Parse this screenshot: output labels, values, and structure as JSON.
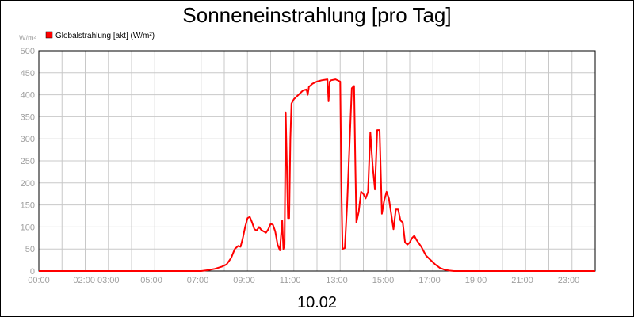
{
  "chart_data": {
    "type": "line",
    "title": "Sonneneinstrahlung [pro Tag]",
    "subtitle": "10.02",
    "ylabel": "W/m²",
    "xlabel": "",
    "ylim": [
      0,
      500
    ],
    "xlim": [
      0,
      24
    ],
    "grid": true,
    "legend_position": "top-left",
    "y_ticks": [
      0,
      50,
      100,
      150,
      200,
      250,
      300,
      350,
      400,
      450,
      500
    ],
    "x_ticks": [
      {
        "x": 0,
        "label": "00:00"
      },
      {
        "x": 2.1,
        "label": "02:00 03:00"
      },
      {
        "x": 5,
        "label": "05:00"
      },
      {
        "x": 7,
        "label": "07:00"
      },
      {
        "x": 9,
        "label": "09:00"
      },
      {
        "x": 11,
        "label": "11:00"
      },
      {
        "x": 13,
        "label": "13:00"
      },
      {
        "x": 15,
        "label": "15:00"
      },
      {
        "x": 17,
        "label": "17:00"
      },
      {
        "x": 19,
        "label": "19:00"
      },
      {
        "x": 21,
        "label": "21:00"
      },
      {
        "x": 23,
        "label": "23:00"
      }
    ],
    "x_minor_grid": [
      0,
      1,
      2,
      3,
      4,
      5,
      6,
      7,
      8,
      9,
      10,
      11,
      12,
      13,
      14,
      15,
      16,
      17,
      18,
      19,
      20,
      21,
      22,
      23,
      24
    ],
    "series": [
      {
        "name": "Globalstrahlung [akt] (W/m²)",
        "color": "#ff0000",
        "x": [
          0,
          7.0,
          7.3,
          7.6,
          7.9,
          8.1,
          8.3,
          8.45,
          8.6,
          8.7,
          8.8,
          8.9,
          9.0,
          9.1,
          9.2,
          9.3,
          9.4,
          9.5,
          9.6,
          9.7,
          9.8,
          9.9,
          10.0,
          10.1,
          10.2,
          10.3,
          10.4,
          10.5,
          10.55,
          10.6,
          10.65,
          10.75,
          10.8,
          10.85,
          10.9,
          11.0,
          11.2,
          11.4,
          11.55,
          11.6,
          11.65,
          11.8,
          12.0,
          12.2,
          12.45,
          12.5,
          12.55,
          12.6,
          12.8,
          13.0,
          13.05,
          13.1,
          13.2,
          13.3,
          13.5,
          13.6,
          13.65,
          13.7,
          13.8,
          13.9,
          14.0,
          14.1,
          14.2,
          14.3,
          14.4,
          14.5,
          14.6,
          14.7,
          14.8,
          14.9,
          15.0,
          15.1,
          15.2,
          15.3,
          15.4,
          15.5,
          15.6,
          15.7,
          15.8,
          15.9,
          16.0,
          16.1,
          16.2,
          16.3,
          16.5,
          16.7,
          16.9,
          17.1,
          17.3,
          17.5,
          17.7,
          17.9,
          18.2,
          18.6,
          24
        ],
        "values": [
          0,
          0,
          2,
          5,
          10,
          15,
          30,
          50,
          57,
          55,
          75,
          100,
          120,
          123,
          110,
          95,
          92,
          100,
          93,
          90,
          87,
          95,
          107,
          105,
          90,
          60,
          47,
          115,
          50,
          60,
          360,
          120,
          120,
          300,
          380,
          390,
          400,
          410,
          412,
          400,
          418,
          425,
          430,
          433,
          435,
          385,
          430,
          433,
          435,
          430,
          200,
          50,
          52,
          150,
          415,
          420,
          250,
          110,
          135,
          180,
          175,
          165,
          180,
          315,
          240,
          185,
          320,
          320,
          130,
          160,
          180,
          165,
          130,
          95,
          140,
          140,
          115,
          110,
          65,
          60,
          65,
          75,
          80,
          70,
          55,
          35,
          25,
          15,
          7,
          3,
          1,
          0,
          0,
          0,
          0
        ]
      }
    ]
  }
}
